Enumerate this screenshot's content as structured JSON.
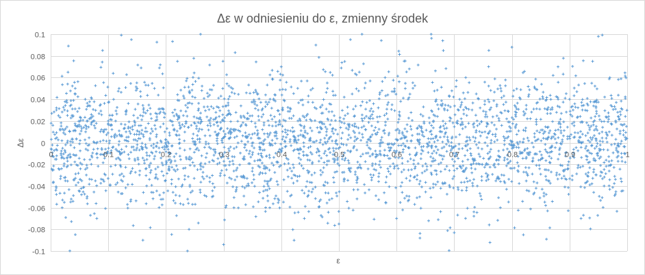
{
  "chart_data": {
    "type": "scatter",
    "title": "Δε w odniesieniu do ε, zmienny środek",
    "xlabel": "ε",
    "ylabel": "Δε",
    "xlim": [
      0,
      1
    ],
    "ylim": [
      -0.1,
      0.1
    ],
    "x_ticks": [
      0,
      0.1,
      0.2,
      0.3,
      0.4,
      0.5,
      0.6,
      0.7,
      0.8,
      0.9,
      1
    ],
    "y_ticks": [
      0.1,
      0.08,
      0.06,
      0.04,
      0.02,
      0,
      -0.02,
      -0.04,
      -0.06,
      -0.08,
      -0.1
    ],
    "x_tick_labels": [
      "0",
      "0.1",
      "0.2",
      "0.3",
      "0.4",
      "0.5",
      "0.6",
      "0.7",
      "0.8",
      "0.9",
      "1"
    ],
    "y_tick_labels": [
      "0.1",
      "0.08",
      "0.06",
      "0.04",
      "0.02",
      "0",
      "-0.02",
      "-0.04",
      "-0.06",
      "-0.08",
      "-0.1"
    ],
    "grid": true,
    "legend": "none",
    "marker": "plus",
    "series_color": "#5b9bd5",
    "point_count": 3000,
    "distribution": {
      "mean": 0,
      "sd": 0.03,
      "sd_note": "approximate spread of Δε around 0 read from the plot"
    },
    "series": [
      {
        "name": "",
        "points": [
          [
            0.01,
            0.03
          ],
          [
            0.02,
            -0.06
          ],
          [
            0.03,
            0.065
          ],
          [
            0.05,
            -0.045
          ],
          [
            0.06,
            0.04
          ],
          [
            0.08,
            -0.07
          ],
          [
            0.09,
            0.085
          ],
          [
            0.1,
            0.02
          ],
          [
            0.12,
            -0.03
          ],
          [
            0.14,
            0.095
          ],
          [
            0.16,
            -0.09
          ],
          [
            0.18,
            0.05
          ],
          [
            0.2,
            -0.02
          ],
          [
            0.22,
            0.075
          ],
          [
            0.24,
            -0.08
          ],
          [
            0.26,
            0.1
          ],
          [
            0.28,
            -0.05
          ],
          [
            0.3,
            -0.094
          ],
          [
            0.32,
            0.083
          ],
          [
            0.34,
            -0.04
          ],
          [
            0.36,
            0.03
          ],
          [
            0.38,
            -0.06
          ],
          [
            0.4,
            0.07
          ],
          [
            0.42,
            0.01
          ],
          [
            0.44,
            -0.07
          ],
          [
            0.46,
            0.09
          ],
          [
            0.48,
            0.05
          ],
          [
            0.5,
            -0.075
          ],
          [
            0.52,
            0.095
          ],
          [
            0.54,
            0.1
          ],
          [
            0.56,
            -0.03
          ],
          [
            0.58,
            0.06
          ],
          [
            0.6,
            -0.07
          ],
          [
            0.62,
            0.04
          ],
          [
            0.64,
            -0.05
          ],
          [
            0.66,
            0.1
          ],
          [
            0.68,
            0.094
          ],
          [
            0.7,
            -0.083
          ],
          [
            0.72,
            0.06
          ],
          [
            0.74,
            -0.04
          ],
          [
            0.76,
            0.085
          ],
          [
            0.78,
            -0.06
          ],
          [
            0.8,
            0.088
          ],
          [
            0.82,
            -0.085
          ],
          [
            0.84,
            0.05
          ],
          [
            0.86,
            -0.089
          ],
          [
            0.88,
            0.07
          ],
          [
            0.9,
            0.04
          ],
          [
            0.92,
            -0.07
          ],
          [
            0.94,
            0.075
          ],
          [
            0.95,
            0.098
          ],
          [
            0.96,
            -0.04
          ],
          [
            0.97,
            0.06
          ],
          [
            0.98,
            0.02
          ],
          [
            0.99,
            -0.01
          ]
        ]
      }
    ]
  }
}
